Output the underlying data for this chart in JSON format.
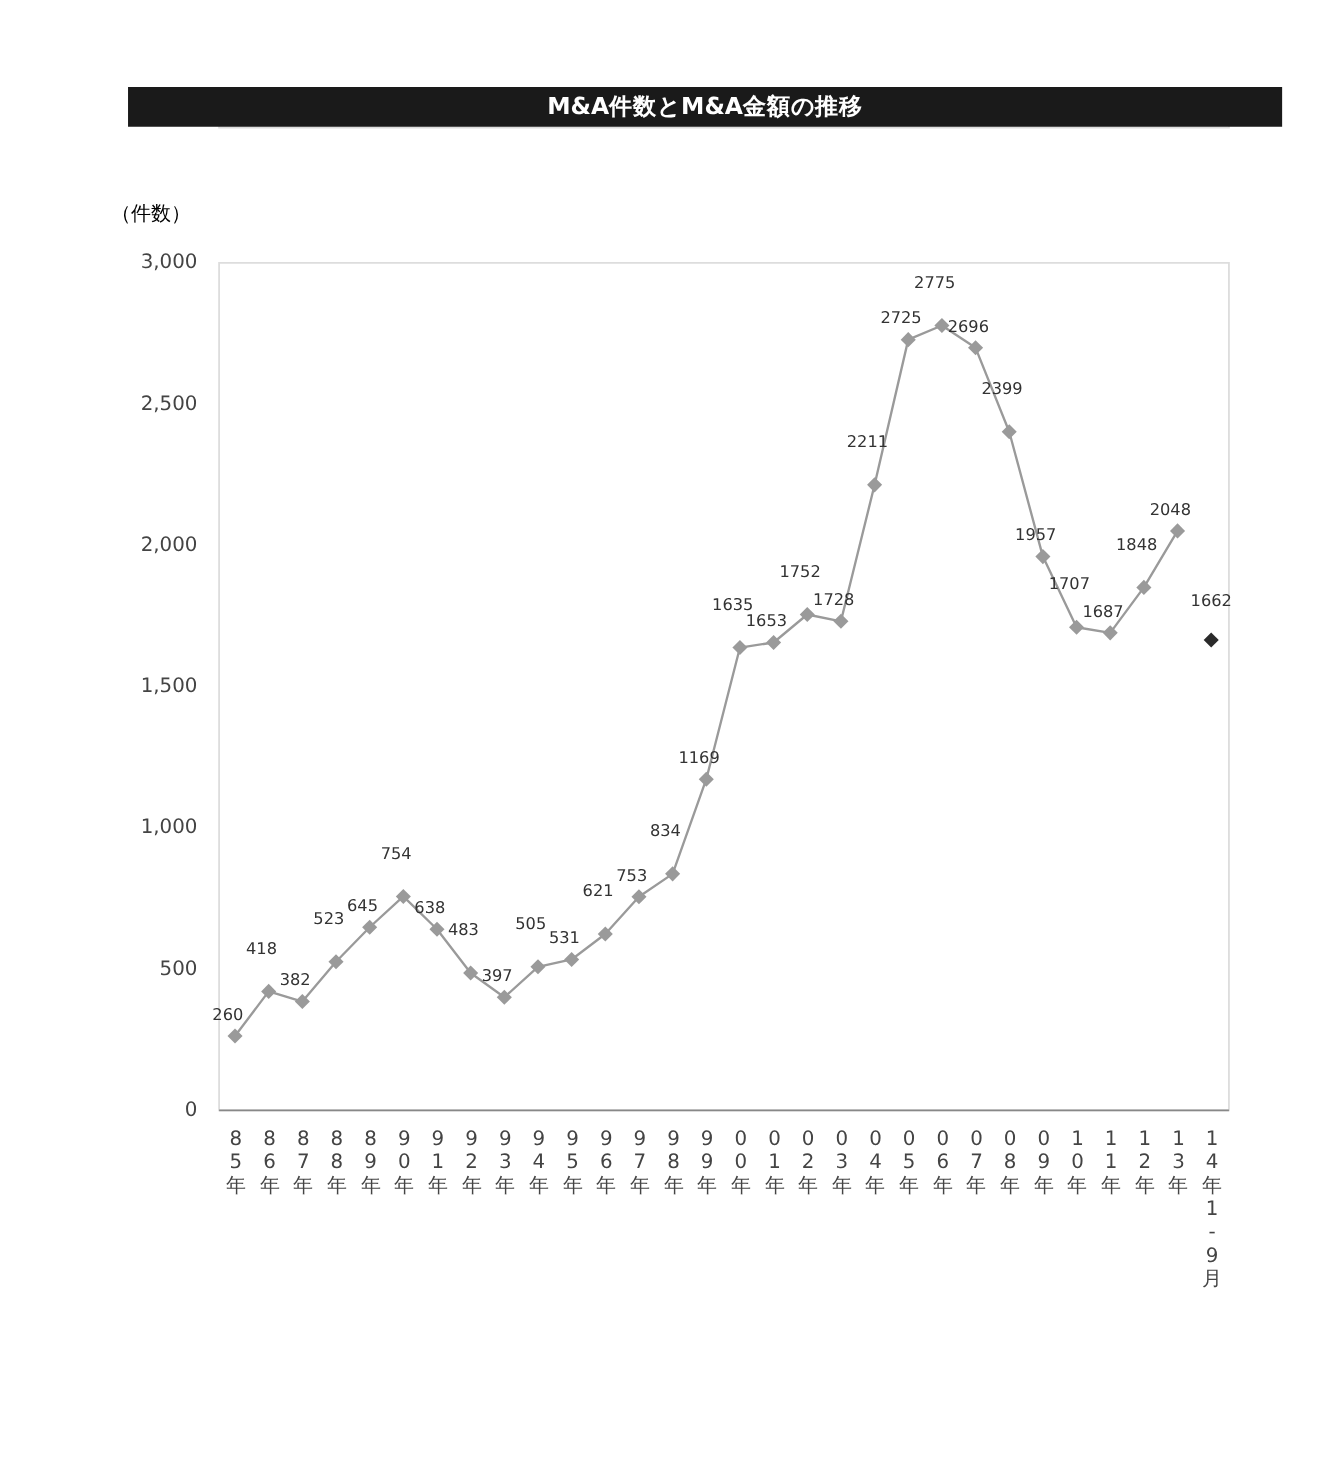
{
  "chart_data": {
    "type": "line",
    "title": "M&A件数とM&A金額の推移",
    "ylabel": "（件数）",
    "categories": [
      "85年",
      "86年",
      "87年",
      "88年",
      "89年",
      "90年",
      "91年",
      "92年",
      "93年",
      "94年",
      "95年",
      "96年",
      "97年",
      "98年",
      "99年",
      "00年",
      "01年",
      "02年",
      "03年",
      "04年",
      "05年",
      "06年",
      "07年",
      "08年",
      "09年",
      "10年",
      "11年",
      "12年",
      "13年",
      "14年1-9月"
    ],
    "series": [
      {
        "color": "#9a9a9a",
        "values": [
          260,
          418,
          382,
          523,
          645,
          754,
          638,
          483,
          397,
          505,
          531,
          621,
          753,
          834,
          1169,
          1635,
          1653,
          1752,
          1728,
          2211,
          2725,
          2775,
          2696,
          2399,
          1957,
          1707,
          1687,
          1848,
          2048,
          null
        ]
      },
      {
        "type": "scatter",
        "color": "#2a2a2a",
        "values": [
          null,
          null,
          null,
          null,
          null,
          null,
          null,
          null,
          null,
          null,
          null,
          null,
          null,
          null,
          null,
          null,
          null,
          null,
          null,
          null,
          null,
          null,
          null,
          null,
          null,
          null,
          null,
          null,
          null,
          1662
        ]
      }
    ],
    "ylim": [
      0,
      3000
    ],
    "yticks": [
      0,
      500,
      {
        "value": 1000,
        "label": "1,000"
      },
      {
        "value": 1500,
        "label": "1,500"
      },
      {
        "value": 2000,
        "label": "2,000"
      },
      {
        "value": 2500,
        "label": "2,500"
      },
      {
        "value": 3000,
        "label": "3,000"
      }
    ],
    "grid": false,
    "marker": "diamond",
    "line_style": "solid",
    "data_labels": true
  }
}
